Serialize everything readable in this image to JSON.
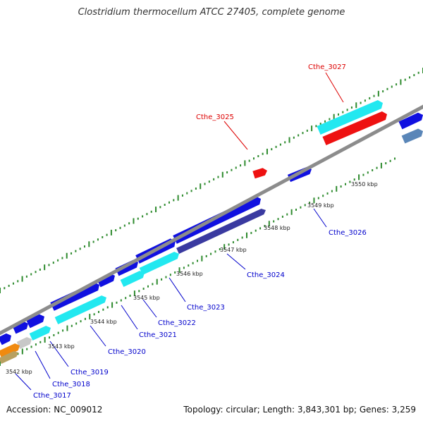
{
  "title": "Clostridium thermocellum ATCC 27405, complete genome",
  "footer": {
    "accession": "Accession: NC_009012",
    "summary": "Topology: circular; Length: 3,843,301 bp; Genes: 3,259"
  },
  "colors": {
    "backbone": "#8c8c8c",
    "tick": "#2e8b2e",
    "blue": "#1010e0",
    "cyan": "#22e8f0",
    "red": "#ee1111",
    "navy": "#3a3aa0",
    "steel": "#5a86b8",
    "orange": "#f08a10",
    "gray": "#c8c8c8",
    "olive": "#b8a060",
    "label_red": "#dd0000",
    "label_blue": "#0000cc"
  },
  "scale_labels": [
    "3542 kbp",
    "3543 kbp",
    "3544 kbp",
    "3545 kbp",
    "3546 kbp",
    "3547 kbp",
    "3548 kbp",
    "3549 kbp",
    "3550 kbp"
  ],
  "gene_labels": [
    {
      "text": "Cthe_3027",
      "color": "red"
    },
    {
      "text": "Cthe_3025",
      "color": "red"
    },
    {
      "text": "Cthe_3026",
      "color": "blue"
    },
    {
      "text": "Cthe_3024",
      "color": "blue"
    },
    {
      "text": "Cthe_3023",
      "color": "blue"
    },
    {
      "text": "Cthe_3022",
      "color": "blue"
    },
    {
      "text": "Cthe_3021",
      "color": "blue"
    },
    {
      "text": "Cthe_3020",
      "color": "blue"
    },
    {
      "text": "Cthe_3019",
      "color": "blue"
    },
    {
      "text": "Cthe_3018",
      "color": "blue"
    },
    {
      "text": "Cthe_3017",
      "color": "blue"
    }
  ]
}
